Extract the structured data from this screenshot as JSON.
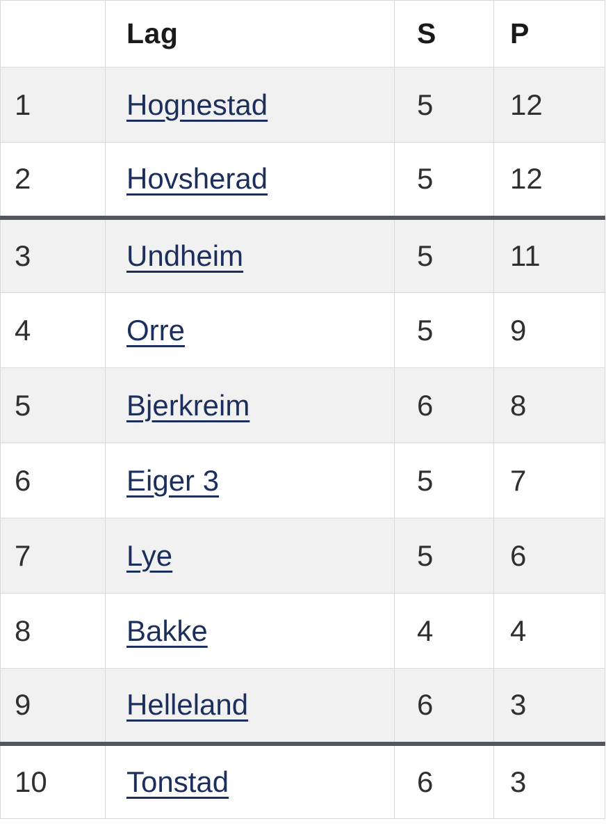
{
  "colors": {
    "link": "#1c2e5c",
    "zebra_row_background": "#f1f1f1",
    "cell_border": "#d9d9d9",
    "group_separator": "#53565c",
    "header_text": "#1a1a1a",
    "number_text": "#2e2f31"
  },
  "table": {
    "header": {
      "rank": "",
      "team": "Lag",
      "matches": "S",
      "points": "P"
    },
    "rows": [
      {
        "rank": "1",
        "team": "Hognestad",
        "matches": "5",
        "points": "12",
        "zebra": true,
        "separator_above": false
      },
      {
        "rank": "2",
        "team": "Hovsherad",
        "matches": "5",
        "points": "12",
        "zebra": false,
        "separator_above": false
      },
      {
        "rank": "3",
        "team": "Undheim",
        "matches": "5",
        "points": "11",
        "zebra": true,
        "separator_above": true
      },
      {
        "rank": "4",
        "team": "Orre",
        "matches": "5",
        "points": "9",
        "zebra": false,
        "separator_above": false
      },
      {
        "rank": "5",
        "team": "Bjerkreim",
        "matches": "6",
        "points": "8",
        "zebra": true,
        "separator_above": false
      },
      {
        "rank": "6",
        "team": "Eiger 3",
        "matches": "5",
        "points": "7",
        "zebra": false,
        "separator_above": false
      },
      {
        "rank": "7",
        "team": "Lye",
        "matches": "5",
        "points": "6",
        "zebra": true,
        "separator_above": false
      },
      {
        "rank": "8",
        "team": "Bakke",
        "matches": "4",
        "points": "4",
        "zebra": false,
        "separator_above": false
      },
      {
        "rank": "9",
        "team": "Helleland",
        "matches": "6",
        "points": "3",
        "zebra": true,
        "separator_above": false
      },
      {
        "rank": "10",
        "team": "Tonstad",
        "matches": "6",
        "points": "3",
        "zebra": false,
        "separator_above": true
      }
    ]
  }
}
